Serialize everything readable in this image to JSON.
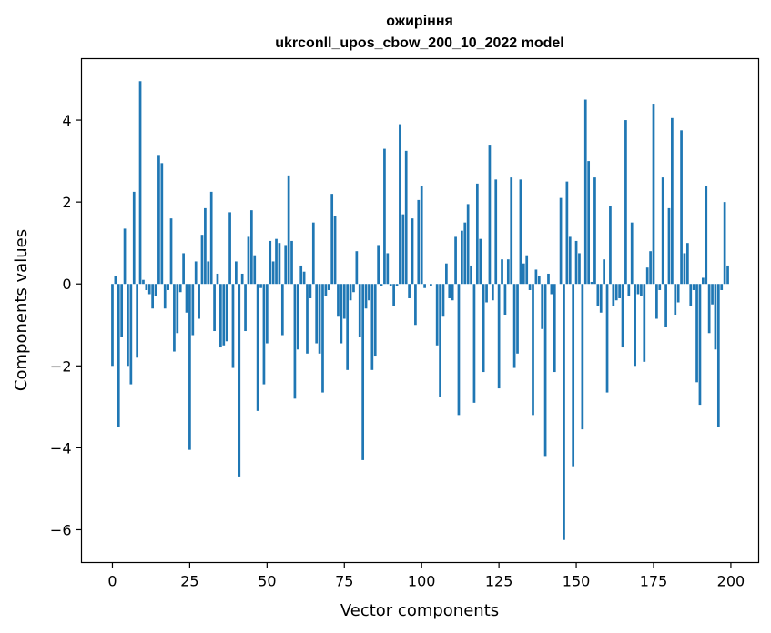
{
  "chart_data": {
    "type": "bar",
    "title": "ожиріння",
    "subtitle": "ukrconll_upos_cbow_200_10_2022 model",
    "xlabel": "Vector components",
    "ylabel": "Components values",
    "xlim": [
      -10,
      209
    ],
    "ylim": [
      -6.8,
      5.5
    ],
    "xticks": [
      0,
      25,
      50,
      75,
      100,
      125,
      150,
      175,
      200
    ],
    "yticks": [
      -6,
      -4,
      -2,
      0,
      2,
      4
    ],
    "ytick_labels": [
      "−6",
      "−4",
      "−2",
      "0",
      "2",
      "4"
    ],
    "bar_color": "#1f77b4",
    "grid": false,
    "legend": "none",
    "x": [
      0,
      1,
      2,
      3,
      4,
      5,
      6,
      7,
      8,
      9,
      10,
      11,
      12,
      13,
      14,
      15,
      16,
      17,
      18,
      19,
      20,
      21,
      22,
      23,
      24,
      25,
      26,
      27,
      28,
      29,
      30,
      31,
      32,
      33,
      34,
      35,
      36,
      37,
      38,
      39,
      40,
      41,
      42,
      43,
      44,
      45,
      46,
      47,
      48,
      49,
      50,
      51,
      52,
      53,
      54,
      55,
      56,
      57,
      58,
      59,
      60,
      61,
      62,
      63,
      64,
      65,
      66,
      67,
      68,
      69,
      70,
      71,
      72,
      73,
      74,
      75,
      76,
      77,
      78,
      79,
      80,
      81,
      82,
      83,
      84,
      85,
      86,
      87,
      88,
      89,
      90,
      91,
      92,
      93,
      94,
      95,
      96,
      97,
      98,
      99,
      100,
      101,
      102,
      103,
      104,
      105,
      106,
      107,
      108,
      109,
      110,
      111,
      112,
      113,
      114,
      115,
      116,
      117,
      118,
      119,
      120,
      121,
      122,
      123,
      124,
      125,
      126,
      127,
      128,
      129,
      130,
      131,
      132,
      133,
      134,
      135,
      136,
      137,
      138,
      139,
      140,
      141,
      142,
      143,
      144,
      145,
      146,
      147,
      148,
      149,
      150,
      151,
      152,
      153,
      154,
      155,
      156,
      157,
      158,
      159,
      160,
      161,
      162,
      163,
      164,
      165,
      166,
      167,
      168,
      169,
      170,
      171,
      172,
      173,
      174,
      175,
      176,
      177,
      178,
      179,
      180,
      181,
      182,
      183,
      184,
      185,
      186,
      187,
      188,
      189,
      190,
      191,
      192,
      193,
      194,
      195,
      196,
      197,
      198,
      199
    ],
    "values": [
      -2.0,
      0.2,
      -3.5,
      -1.3,
      1.35,
      -2.0,
      -2.45,
      2.25,
      -1.8,
      4.95,
      0.1,
      -0.15,
      -0.25,
      -0.6,
      -0.3,
      3.15,
      2.95,
      -0.6,
      -0.15,
      1.6,
      -1.65,
      -1.2,
      -0.2,
      0.75,
      -0.7,
      -4.05,
      -1.25,
      0.55,
      -0.85,
      1.2,
      1.85,
      0.55,
      2.25,
      -1.15,
      0.25,
      -1.55,
      -1.5,
      -1.4,
      1.75,
      -2.05,
      0.55,
      -4.7,
      0.25,
      -1.15,
      1.15,
      1.8,
      0.7,
      -3.1,
      -0.1,
      -2.45,
      -1.45,
      1.05,
      0.55,
      1.1,
      1.0,
      -1.25,
      0.95,
      2.65,
      1.05,
      -2.8,
      -1.6,
      0.45,
      0.3,
      -1.7,
      -0.35,
      1.5,
      -1.45,
      -1.7,
      -2.65,
      -0.3,
      -0.15,
      2.2,
      1.65,
      -0.8,
      -1.45,
      -0.85,
      -2.1,
      -0.4,
      -0.2,
      0.8,
      -1.3,
      -4.3,
      -0.6,
      -0.4,
      -2.1,
      -1.75,
      0.95,
      -0.05,
      3.3,
      0.75,
      -0.05,
      -0.55,
      -0.05,
      3.9,
      1.7,
      3.25,
      -0.35,
      1.6,
      -1.0,
      2.05,
      2.4,
      -0.1,
      0.0,
      -0.05,
      0.0,
      -1.5,
      -2.75,
      -0.8,
      0.5,
      -0.35,
      -0.4,
      1.15,
      -3.2,
      1.3,
      1.5,
      1.95,
      0.45,
      -2.9,
      2.45,
      1.1,
      -2.15,
      -0.45,
      3.4,
      -0.4,
      2.55,
      -2.55,
      0.6,
      -0.75,
      0.6,
      2.6,
      -2.05,
      -1.7,
      2.55,
      0.5,
      0.7,
      -0.15,
      -3.2,
      0.35,
      0.2,
      -1.1,
      -4.2,
      0.25,
      -0.25,
      -2.15,
      0.0,
      2.1,
      -6.25,
      2.5,
      1.15,
      -4.45,
      1.05,
      0.75,
      -3.55,
      4.5,
      3.0,
      0.05,
      2.6,
      -0.55,
      -0.7,
      0.6,
      -2.65,
      1.9,
      -0.55,
      -0.4,
      -0.35,
      -1.55,
      4.0,
      -0.3,
      1.5,
      -2.0,
      -0.25,
      -0.3,
      -1.9,
      0.4,
      0.8,
      4.4,
      -0.85,
      -0.15,
      2.6,
      -1.05,
      1.85,
      4.05,
      -0.75,
      -0.45,
      3.75,
      0.75,
      1.0,
      -0.55,
      -0.15,
      -2.4,
      -2.95,
      0.15,
      2.4,
      -1.2,
      -0.5,
      -1.6,
      -3.5,
      -0.15,
      2.0,
      0.45
    ]
  }
}
